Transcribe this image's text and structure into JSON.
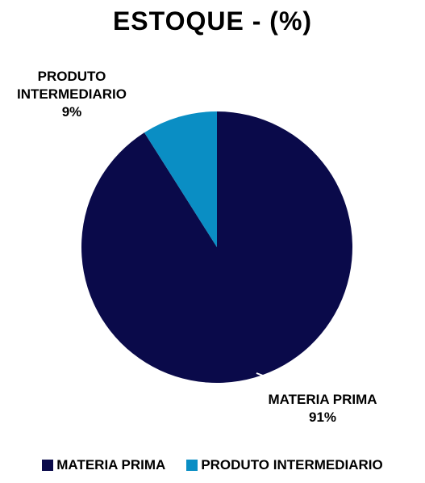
{
  "chart_data": {
    "type": "pie",
    "title": "ESTOQUE - (%)",
    "slices": [
      {
        "name": "MATERIA PRIMA",
        "value": 91,
        "value_label": "91%",
        "color": "#0a0a4a"
      },
      {
        "name": "PRODUTO INTERMEDIARIO",
        "value": 9,
        "value_label": "9%",
        "color": "#0a8ec4"
      }
    ],
    "slice_labels": [
      {
        "lines": [
          "MATERIA PRIMA"
        ],
        "value_label": "91%"
      },
      {
        "lines": [
          "PRODUTO",
          "INTERMEDIARIO"
        ],
        "value_label": "9%"
      }
    ],
    "legend": {
      "position": "bottom",
      "entries": [
        "MATERIA PRIMA",
        "PRODUTO INTERMEDIARIO"
      ]
    }
  }
}
